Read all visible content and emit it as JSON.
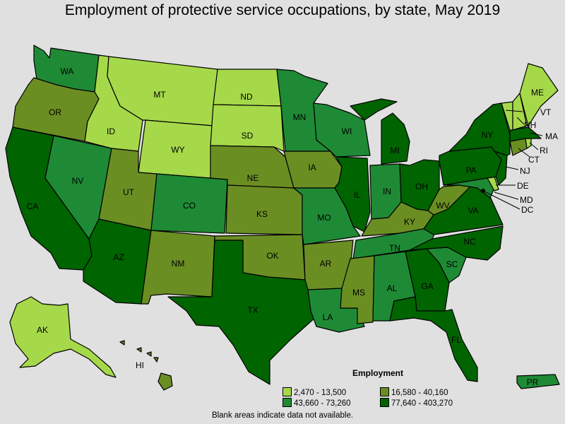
{
  "title": "Employment of protective service occupations, by state, May 2019",
  "footnote": "Blank areas indicate data not available.",
  "legend": {
    "title": "Employment",
    "bins": [
      {
        "label": "2,470 - 13,500",
        "color": "#a6d94a"
      },
      {
        "label": "16,580 - 40,160",
        "color": "#6b8e23"
      },
      {
        "label": "43,660 - 73,260",
        "color": "#1f8a35"
      },
      {
        "label": "77,640 - 403,270",
        "color": "#006400"
      }
    ]
  },
  "states": {
    "WA": {
      "bin": 2
    },
    "OR": {
      "bin": 1
    },
    "CA": {
      "bin": 3
    },
    "NV": {
      "bin": 2
    },
    "ID": {
      "bin": 0
    },
    "MT": {
      "bin": 0
    },
    "WY": {
      "bin": 0
    },
    "UT": {
      "bin": 1
    },
    "AZ": {
      "bin": 3
    },
    "CO": {
      "bin": 2
    },
    "NM": {
      "bin": 1
    },
    "ND": {
      "bin": 0
    },
    "SD": {
      "bin": 0
    },
    "NE": {
      "bin": 1
    },
    "KS": {
      "bin": 1
    },
    "OK": {
      "bin": 1
    },
    "TX": {
      "bin": 3
    },
    "MN": {
      "bin": 2
    },
    "IA": {
      "bin": 1
    },
    "MO": {
      "bin": 2
    },
    "AR": {
      "bin": 1
    },
    "LA": {
      "bin": 2
    },
    "WI": {
      "bin": 2
    },
    "IL": {
      "bin": 3
    },
    "MI": {
      "bin": 3
    },
    "IN": {
      "bin": 2
    },
    "OH": {
      "bin": 3
    },
    "KY": {
      "bin": 1
    },
    "TN": {
      "bin": 2
    },
    "MS": {
      "bin": 1
    },
    "AL": {
      "bin": 2
    },
    "GA": {
      "bin": 3
    },
    "FL": {
      "bin": 3
    },
    "SC": {
      "bin": 2
    },
    "NC": {
      "bin": 3
    },
    "VA": {
      "bin": 3
    },
    "WV": {
      "bin": 1
    },
    "PA": {
      "bin": 3
    },
    "NY": {
      "bin": 3
    },
    "NJ": {
      "bin": 3
    },
    "DE": {
      "bin": 0
    },
    "MD": {
      "bin": 2
    },
    "DC": {
      "bin": 2
    },
    "CT": {
      "bin": 1
    },
    "RI": {
      "bin": 0
    },
    "MA": {
      "bin": 3
    },
    "VT": {
      "bin": 0
    },
    "NH": {
      "bin": 0
    },
    "ME": {
      "bin": 0
    },
    "AK": {
      "bin": 0
    },
    "HI": {
      "bin": 1
    },
    "PR": {
      "bin": 2
    }
  }
}
